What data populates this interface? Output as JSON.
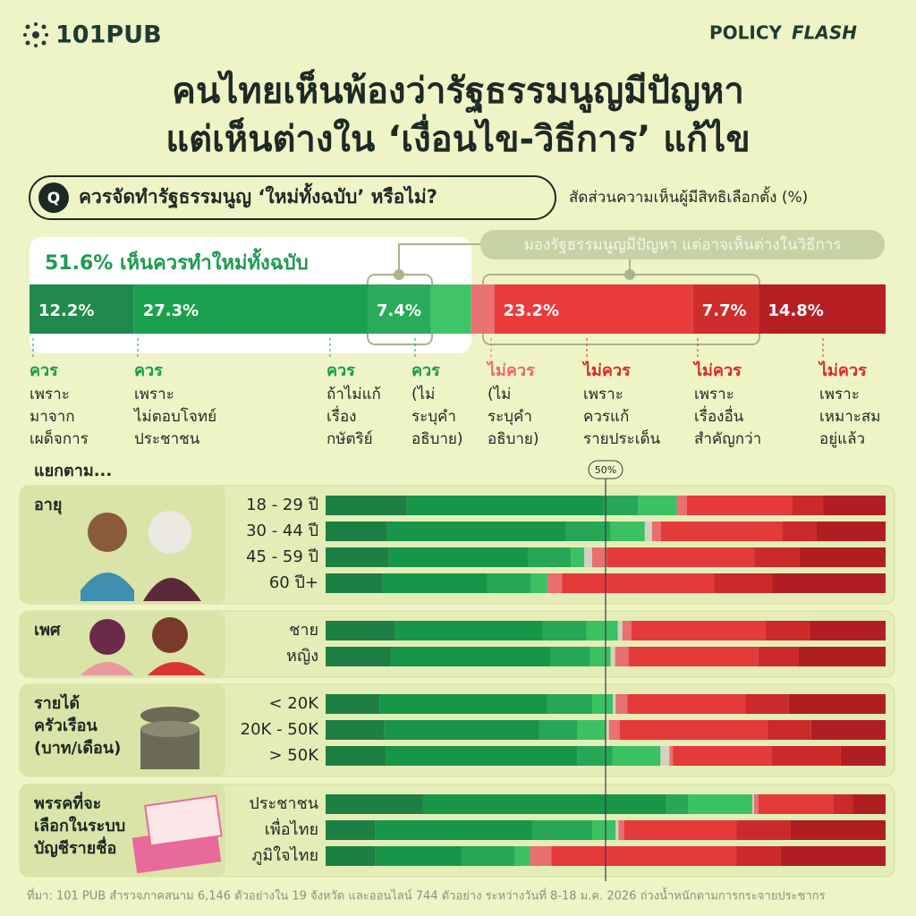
{
  "header": {
    "logo": "101PUB",
    "brand": [
      "POLICY",
      "FLASH"
    ]
  },
  "title": [
    "คนไทยเห็นพ้องว่ารัฐธรรมนูญมีปัญหา",
    "แต่เห็นต่างใน ‘เงื่อนไข-วิธีการ’ แก้ไข"
  ],
  "question": {
    "badge": "Q",
    "text": "ควรจัดทำรัฐธรรมนูญ ‘ใหม่ทั้งฉบับ’ หรือไม่?",
    "unit_note": "สัดส่วนความเห็นผู้มีสิทธิเลือกตั้ง (%)"
  },
  "summary": {
    "headline": "51.6% เห็นควรทำใหม่ทั้งฉบับ",
    "annotation": "มองรัฐธรรมนูญมีปัญหา แต่อาจเห็นต่างในวิธีการ",
    "xlim": [
      0,
      100
    ],
    "segments": [
      {
        "value": 12.2,
        "value_label": "12.2%",
        "color": "#1f8a4c",
        "verdict": "ควร",
        "verdict_color": "#1c9b4e",
        "reason": [
          "เพราะ",
          "มาจาก",
          "เผด็จการ"
        ]
      },
      {
        "value": 27.3,
        "value_label": "27.3%",
        "color": "#1ba04f",
        "verdict": "ควร",
        "verdict_color": "#1c9b4e",
        "reason": [
          "เพราะ",
          "ไม่ตอบโจทย์",
          "ประชาชน"
        ]
      },
      {
        "value": 7.4,
        "value_label": "7.4%",
        "color": "#2aab5a",
        "verdict": "ควร",
        "verdict_color": "#1c9b4e",
        "reason": [
          "ถ้าไม่แก้",
          "เรื่อง",
          "กษัตริย์"
        ]
      },
      {
        "value": 4.7,
        "value_label": null,
        "color": "#40c468",
        "verdict": "ควร",
        "verdict_color": "#1c9b4e",
        "reason": [
          "(ไม่",
          "ระบุคำ",
          "อธิบาย)"
        ]
      },
      {
        "value": 2.7,
        "value_label": null,
        "color": "#ea7272",
        "verdict": "ไม่ควร",
        "verdict_color": "#e86a6a",
        "reason": [
          "(ไม่",
          "ระบุคำ",
          "อธิบาย)"
        ]
      },
      {
        "value": 23.2,
        "value_label": "23.2%",
        "color": "#e83c3c",
        "verdict": "ไม่ควร",
        "verdict_color": "#d92b2b",
        "reason": [
          "เพราะ",
          "ควรแก้",
          "รายประเด็น"
        ]
      },
      {
        "value": 7.7,
        "value_label": "7.7%",
        "color": "#cf2c2c",
        "verdict": "ไม่ควร",
        "verdict_color": "#d92b2b",
        "reason": [
          "เพราะ",
          "เรื่องอื่น",
          "สำคัญกว่า"
        ]
      },
      {
        "value": 14.8,
        "value_label": "14.8%",
        "color": "#b51f24",
        "verdict": "ไม่ควร",
        "verdict_color": "#d92b2b",
        "reason": [
          "เพราะ",
          "เหมาะสม",
          "อยู่แล้ว"
        ]
      }
    ]
  },
  "breakdown_label": "แยกตาม...",
  "reference": {
    "value": 50,
    "label": "50%"
  },
  "chart_data": [
    {
      "type": "bar",
      "title": [
        "อายุ"
      ],
      "categories": [
        "18 - 29 ปี",
        "30 - 44 ปี",
        "45 - 59 ปี",
        "60 ปี+"
      ],
      "xlim": [
        0,
        100
      ],
      "series": [
        {
          "color": "#1e7f45",
          "values": [
            14.5,
            11.0,
            11.3,
            10.2
          ]
        },
        {
          "color": "#17964a",
          "values": [
            35.1,
            31.9,
            24.8,
            18.7
          ]
        },
        {
          "color": "#27a657",
          "values": [
            6.2,
            8.0,
            7.7,
            7.8
          ]
        },
        {
          "color": "#3cc064",
          "values": [
            6.9,
            6.1,
            2.4,
            2.9
          ]
        },
        {
          "color": "#cfd3bf",
          "values": [
            0,
            1.3,
            1.4,
            0
          ]
        },
        {
          "color": "#e87070",
          "values": [
            1.8,
            1.6,
            2.6,
            2.6
          ]
        },
        {
          "color": "#e53a3a",
          "values": [
            18.8,
            21.6,
            26.4,
            27.2
          ]
        },
        {
          "color": "#cc2a2a",
          "values": [
            5.6,
            6.1,
            8.0,
            10.4
          ]
        },
        {
          "color": "#b01e24",
          "values": [
            11.1,
            12.4,
            15.4,
            20.2
          ]
        }
      ]
    },
    {
      "type": "bar",
      "title": [
        "เพศ"
      ],
      "categories": [
        "ชาย",
        "หญิง"
      ],
      "xlim": [
        0,
        100
      ],
      "series": [
        {
          "color": "#1e7f45",
          "values": [
            12.3,
            11.8
          ]
        },
        {
          "color": "#17964a",
          "values": [
            26.5,
            28.4
          ]
        },
        {
          "color": "#27a657",
          "values": [
            7.8,
            7.0
          ]
        },
        {
          "color": "#3cc064",
          "values": [
            5.6,
            3.7
          ]
        },
        {
          "color": "#cfd3bf",
          "values": [
            0.8,
            0.8
          ]
        },
        {
          "color": "#e87070",
          "values": [
            1.6,
            2.4
          ]
        },
        {
          "color": "#e53a3a",
          "values": [
            24.0,
            23.2
          ]
        },
        {
          "color": "#cc2a2a",
          "values": [
            7.8,
            7.2
          ]
        },
        {
          "color": "#b01e24",
          "values": [
            13.6,
            15.5
          ]
        }
      ]
    },
    {
      "type": "bar",
      "title": [
        "รายได้",
        "ครัวเรือน",
        "(บาท/เดือน)"
      ],
      "categories": [
        "< 20K",
        "20K - 50K",
        "> 50K"
      ],
      "xlim": [
        0,
        100
      ],
      "series": [
        {
          "color": "#1e7f45",
          "values": [
            9.6,
            10.5,
            10.7
          ]
        },
        {
          "color": "#17964a",
          "values": [
            30.0,
            27.6,
            34.3
          ]
        },
        {
          "color": "#27a657",
          "values": [
            8.0,
            6.9,
            6.2
          ]
        },
        {
          "color": "#3cc064",
          "values": [
            3.7,
            5.1,
            8.6
          ]
        },
        {
          "color": "#cfd3bf",
          "values": [
            0.5,
            0.5,
            1.6
          ]
        },
        {
          "color": "#e87070",
          "values": [
            2.1,
            1.9,
            0.6
          ]
        },
        {
          "color": "#e53a3a",
          "values": [
            21.1,
            26.4,
            17.7
          ]
        },
        {
          "color": "#cc2a2a",
          "values": [
            7.7,
            7.8,
            12.3
          ]
        },
        {
          "color": "#b01e24",
          "values": [
            17.3,
            13.3,
            8.0
          ]
        }
      ]
    },
    {
      "type": "bar",
      "title": [
        "พรรคที่จะ",
        "เลือกในระบบ",
        "บัญชีรายชื่อ"
      ],
      "categories": [
        "ประชาชน",
        "เพื่อไทย",
        "ภูมิใจไทย"
      ],
      "xlim": [
        0,
        100
      ],
      "series": [
        {
          "color": "#1e7f45",
          "values": [
            17.4,
            8.9,
            8.9
          ]
        },
        {
          "color": "#17964a",
          "values": [
            43.5,
            28.0,
            15.5
          ]
        },
        {
          "color": "#27a657",
          "values": [
            3.8,
            10.7,
            9.4
          ]
        },
        {
          "color": "#3cc064",
          "values": [
            11.5,
            4.2,
            2.7
          ]
        },
        {
          "color": "#cfd3bf",
          "values": [
            0.3,
            0.5,
            0
          ]
        },
        {
          "color": "#e87070",
          "values": [
            0.8,
            1.0,
            3.8
          ]
        },
        {
          "color": "#e53a3a",
          "values": [
            13.3,
            20.1,
            33.1
          ]
        },
        {
          "color": "#cc2a2a",
          "values": [
            3.5,
            9.6,
            7.8
          ]
        },
        {
          "color": "#b01e24",
          "values": [
            5.9,
            17.0,
            18.8
          ]
        }
      ]
    }
  ],
  "footnote": "ที่มา: 101 PUB สำรวจภาคสนาม 6,146 ตัวอย่างใน 19 จังหวัด และออนไลน์ 744 ตัวอย่าง ระหว่างวันที่ 8-18 ม.ค. 2026 ถ่วงน้ำหนักตามการกระจายประชากร"
}
